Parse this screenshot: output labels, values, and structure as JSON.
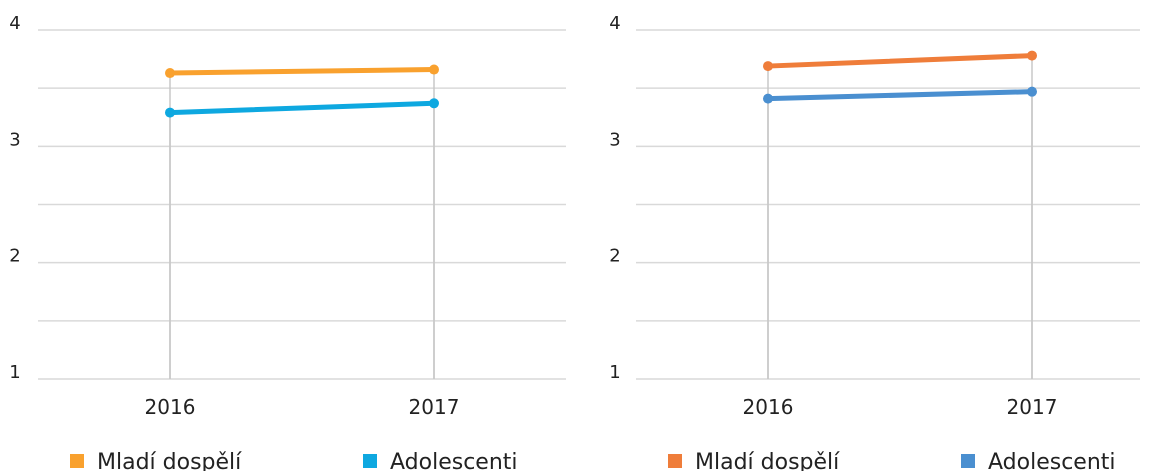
{
  "chart_data": [
    {
      "type": "line",
      "categories": [
        "2016",
        "2017"
      ],
      "series": [
        {
          "name": "Mladí dospělí",
          "color": "#f9a12e",
          "values": [
            3.63,
            3.66
          ]
        },
        {
          "name": "Adolescenti",
          "color": "#0ea8e0",
          "values": [
            3.29,
            3.37
          ]
        }
      ],
      "ylim": [
        1,
        4
      ],
      "yticks": [
        1,
        2,
        3,
        4
      ],
      "minor_yticks": [
        1.5,
        2.5,
        3.5
      ],
      "grid": true,
      "legend": "bottom"
    },
    {
      "type": "line",
      "categories": [
        "2016",
        "2017"
      ],
      "series": [
        {
          "name": "Mladí dospělí",
          "color": "#ef7d3a",
          "values": [
            3.69,
            3.78
          ]
        },
        {
          "name": "Adolescenti",
          "color": "#4a8fd0",
          "values": [
            3.41,
            3.47
          ]
        }
      ],
      "ylim": [
        1,
        4
      ],
      "yticks": [
        1,
        2,
        3,
        4
      ],
      "minor_yticks": [
        1.5,
        2.5,
        3.5
      ],
      "grid": true,
      "legend": "bottom"
    }
  ]
}
